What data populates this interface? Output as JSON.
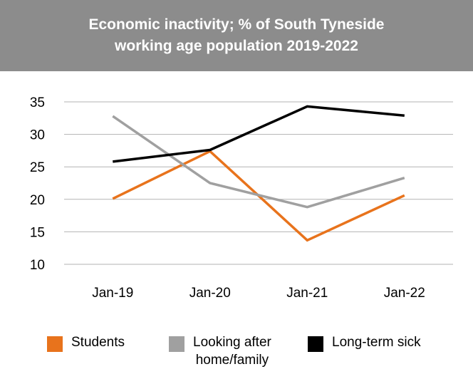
{
  "title_lines": [
    "Economic inactivity; % of South Tyneside",
    "working age population 2019-2022"
  ],
  "chart_data": {
    "type": "line",
    "title": "Economic inactivity; % of South Tyneside working age population 2019-2022",
    "categories": [
      "Jan-19",
      "Jan-20",
      "Jan-21",
      "Jan-22"
    ],
    "ylim": [
      10,
      35
    ],
    "yticks": [
      10,
      15,
      20,
      25,
      30,
      35
    ],
    "grid": true,
    "legend_position": "bottom",
    "series": [
      {
        "name": "Students",
        "color": "#e8731c",
        "values": [
          20.1,
          27.4,
          13.7,
          20.6
        ]
      },
      {
        "name": "Looking after home/family",
        "color": "#a0a0a0",
        "values": [
          32.8,
          22.5,
          18.8,
          23.3
        ]
      },
      {
        "name": "Long-term sick",
        "color": "#000000",
        "values": [
          25.8,
          27.6,
          34.3,
          32.9
        ]
      }
    ]
  },
  "legend": [
    {
      "lines": [
        "Students"
      ],
      "color": "#e8731c"
    },
    {
      "lines": [
        "Looking after",
        "home/family"
      ],
      "color": "#a0a0a0"
    },
    {
      "lines": [
        "Long-term sick"
      ],
      "color": "#000000"
    }
  ]
}
